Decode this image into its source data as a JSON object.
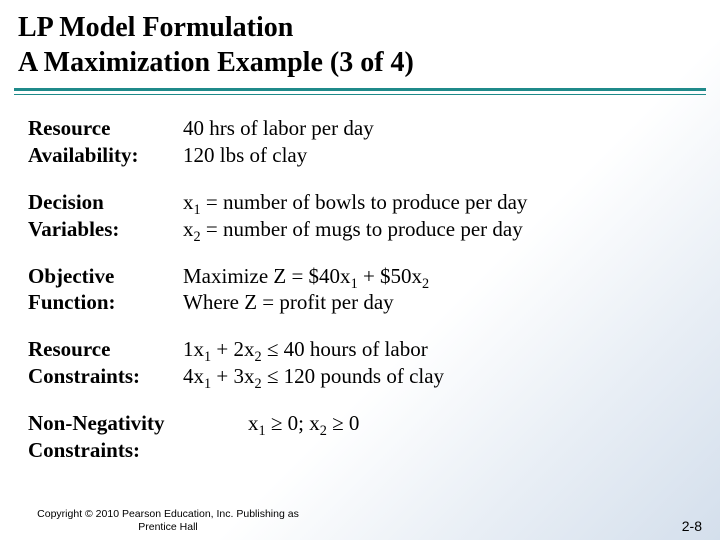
{
  "title": {
    "line1": "LP Model Formulation",
    "line2": "A Maximization Example (3 of 4)"
  },
  "rows": {
    "resource_avail": {
      "label1": "Resource",
      "label2": "Availability:",
      "val1": "40 hrs of labor per day",
      "val2": "120 lbs of clay"
    },
    "decision_vars": {
      "label1": "Decision",
      "label2": "Variables:",
      "val1_pre": "x",
      "val1_sub": "1",
      "val1_post": " = number of bowls to produce per day",
      "val2_pre": "x",
      "val2_sub": "2",
      "val2_post": " = number of mugs to produce per day"
    },
    "objective": {
      "label1": "Objective",
      "label2": "Function:",
      "val1_a": "Maximize Z = $40x",
      "val1_sub1": "1",
      "val1_b": " + $50x",
      "val1_sub2": "2",
      "val2": "Where Z = profit per day"
    },
    "constraints": {
      "label1": "Resource",
      "label2": "Constraints:",
      "v1a": "1x",
      "v1s1": "1",
      "v1b": " + 2x",
      "v1s2": "2",
      "v1c": " ≤ 40 hours of labor",
      "v2a": "4x",
      "v2s1": "1",
      "v2b": " + 3x",
      "v2s2": "2",
      "v2c": " ≤ 120 pounds of clay"
    },
    "nonneg": {
      "label1": "Non-Negativity",
      "label2": "Constraints:",
      "va": "x",
      "vs1": "1",
      "vb": " ≥ 0; x",
      "vs2": "2",
      "vc": " ≥ 0"
    }
  },
  "copyright": "Copyright © 2010 Pearson Education, Inc. Publishing as Prentice Hall",
  "pagenum": "2-8",
  "colors": {
    "rule": "#1f8a8a"
  }
}
